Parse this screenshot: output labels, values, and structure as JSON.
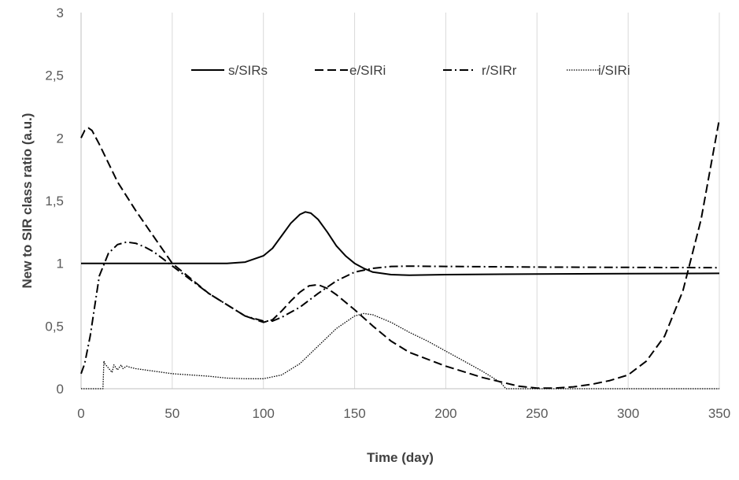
{
  "chart_data": {
    "type": "line",
    "xlabel": "Time (day)",
    "ylabel": "New to SIR class ratio (a.u.)",
    "xlim": [
      0,
      350
    ],
    "ylim": [
      0,
      3
    ],
    "x_ticks": [
      "0",
      "50",
      "100",
      "150",
      "200",
      "250",
      "300",
      "350"
    ],
    "y_ticks": [
      "0",
      "0,5",
      "1",
      "1,5",
      "2",
      "2,5",
      "3"
    ],
    "grid": "vertical",
    "legend_position": "top",
    "series": [
      {
        "name": "s/SIRs",
        "style": "solid",
        "color": "#000000",
        "x": [
          0,
          50,
          80,
          90,
          100,
          105,
          110,
          115,
          120,
          123,
          126,
          130,
          135,
          140,
          145,
          150,
          155,
          160,
          170,
          180,
          200,
          250,
          300,
          350
        ],
        "y": [
          1.0,
          1.0,
          1.0,
          1.01,
          1.06,
          1.12,
          1.22,
          1.32,
          1.39,
          1.41,
          1.4,
          1.35,
          1.25,
          1.14,
          1.06,
          1.0,
          0.96,
          0.93,
          0.91,
          0.905,
          0.91,
          0.915,
          0.918,
          0.92
        ]
      },
      {
        "name": "e/SIRi",
        "style": "dashed",
        "color": "#000000",
        "x": [
          0,
          2,
          4,
          6,
          10,
          20,
          30,
          50,
          70,
          90,
          100,
          105,
          110,
          115,
          120,
          125,
          130,
          135,
          140,
          150,
          160,
          170,
          180,
          200,
          220,
          240,
          250,
          260,
          270,
          280,
          290,
          300,
          310,
          320,
          330,
          340,
          350
        ],
        "y": [
          2.0,
          2.06,
          2.08,
          2.06,
          1.95,
          1.65,
          1.42,
          1.0,
          0.76,
          0.58,
          0.53,
          0.55,
          0.62,
          0.7,
          0.77,
          0.82,
          0.83,
          0.8,
          0.75,
          0.63,
          0.5,
          0.38,
          0.29,
          0.18,
          0.09,
          0.02,
          0.005,
          0.005,
          0.015,
          0.035,
          0.065,
          0.11,
          0.22,
          0.42,
          0.78,
          1.35,
          2.15
        ]
      },
      {
        "name": "r/SIRr",
        "style": "dashdot",
        "color": "#000000",
        "x": [
          0,
          2,
          5,
          10,
          15,
          20,
          25,
          30,
          35,
          40,
          50,
          70,
          90,
          100,
          105,
          110,
          120,
          130,
          140,
          150,
          160,
          170,
          180,
          200,
          250,
          300,
          350
        ],
        "y": [
          0.12,
          0.2,
          0.42,
          0.9,
          1.08,
          1.15,
          1.17,
          1.16,
          1.13,
          1.09,
          0.98,
          0.76,
          0.58,
          0.54,
          0.54,
          0.57,
          0.65,
          0.76,
          0.86,
          0.93,
          0.96,
          0.975,
          0.978,
          0.975,
          0.97,
          0.968,
          0.965
        ]
      },
      {
        "name": "i/SIRi",
        "style": "dotted",
        "color": "#000000",
        "x": [
          0,
          12,
          12.5,
          13,
          17,
          18,
          20,
          22,
          23,
          25,
          27,
          30,
          40,
          50,
          60,
          70,
          80,
          90,
          100,
          110,
          120,
          130,
          140,
          150,
          155,
          160,
          170,
          180,
          190,
          200,
          210,
          220,
          230,
          233,
          240,
          260,
          300,
          350
        ],
        "y": [
          0,
          0,
          0.22,
          0.2,
          0.13,
          0.19,
          0.15,
          0.19,
          0.16,
          0.18,
          0.17,
          0.16,
          0.14,
          0.12,
          0.11,
          0.1,
          0.085,
          0.08,
          0.08,
          0.11,
          0.2,
          0.34,
          0.48,
          0.58,
          0.6,
          0.59,
          0.53,
          0.45,
          0.38,
          0.3,
          0.22,
          0.14,
          0.05,
          0.0,
          0.0,
          0.0,
          0.0,
          0.0
        ]
      }
    ]
  }
}
